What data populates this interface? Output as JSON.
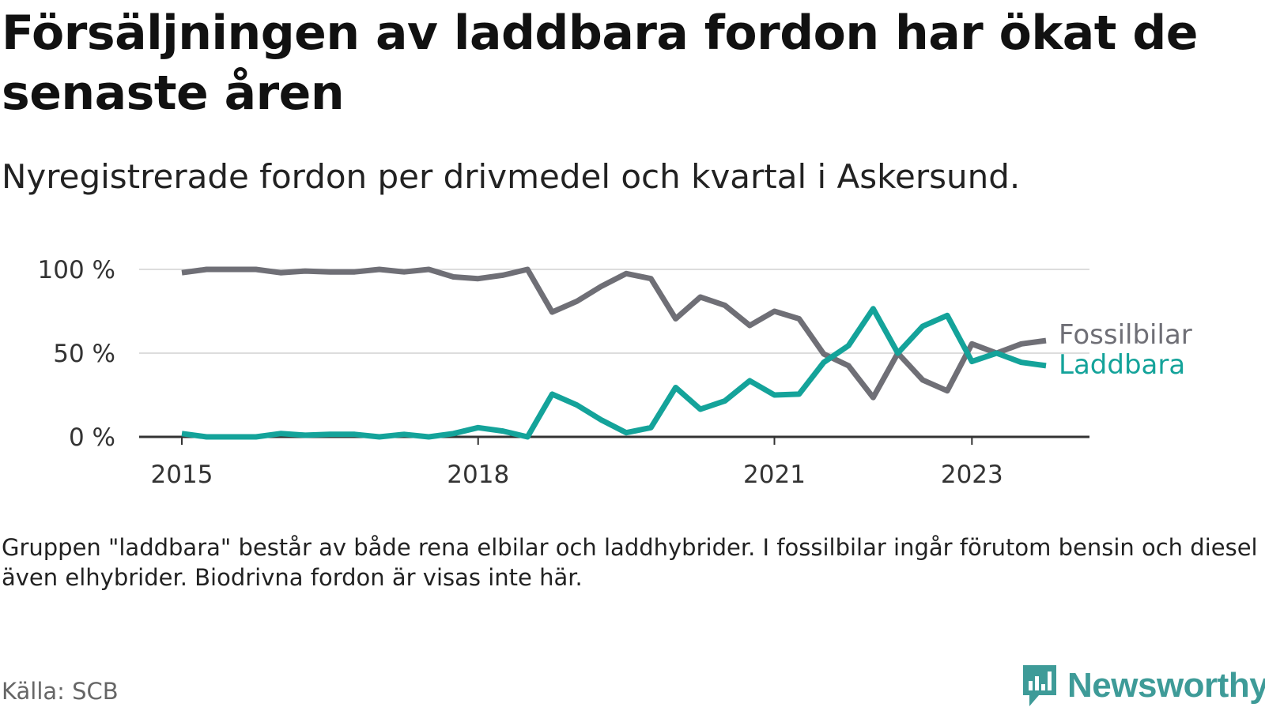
{
  "title": "Försäljningen av laddbara fordon har ökat de senaste åren",
  "subtitle": "Nyregistrerade fordon per drivmedel och kvartal i Askersund.",
  "note": "Gruppen \"laddbara\" består av både rena elbilar och laddhybrider. I fossilbilar ingår förutom bensin och diesel även elhybrider. Biodrivna fordon är visas inte här.",
  "source": "Källa: SCB",
  "brand": "Newsworthy",
  "colors": {
    "fossil": "#6f6f76",
    "laddbara": "#14a39a",
    "grid": "#dddddd",
    "axis": "#333333",
    "brand": "#3e9b98"
  },
  "chart_data": {
    "type": "line",
    "ylim": [
      0,
      100
    ],
    "y_ticks": [
      0,
      50,
      100
    ],
    "y_tick_labels": [
      "0 %",
      "50 %",
      "100 %"
    ],
    "x_tick_index": [
      0,
      12,
      24,
      32
    ],
    "x_tick_labels": [
      "2015",
      "2018",
      "2021",
      "2023"
    ],
    "x_range": [
      0,
      35
    ],
    "series": [
      {
        "name": "Fossilbilar",
        "color_key": "fossil",
        "values": [
          98,
          100,
          100,
          100,
          98,
          99,
          98.5,
          98.5,
          100,
          98.5,
          100,
          95.5,
          94.5,
          96.5,
          100,
          74.5,
          81,
          90,
          97.5,
          94.5,
          70.5,
          83.5,
          78.5,
          66.5,
          75,
          70.5,
          49.5,
          42.5,
          23.5,
          50,
          34,
          27.5,
          55.5,
          50,
          55.5,
          57.5
        ]
      },
      {
        "name": "Laddbara",
        "color_key": "laddbara",
        "values": [
          2,
          0,
          0,
          0,
          2,
          1,
          1.5,
          1.5,
          0,
          1.5,
          0,
          2,
          5.5,
          3.5,
          0,
          25.5,
          19,
          10,
          2.5,
          5.5,
          29.5,
          16.5,
          21.5,
          33.5,
          25,
          25.5,
          44.5,
          54.5,
          76.5,
          50,
          66,
          72.5,
          45,
          50,
          44.5,
          42.5
        ]
      }
    ]
  }
}
